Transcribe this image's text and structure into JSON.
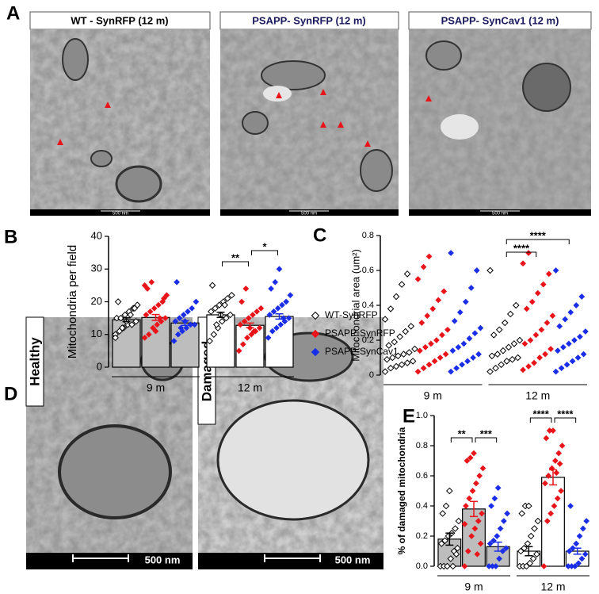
{
  "panels": {
    "a": {
      "label": "A",
      "images": [
        {
          "title": "WT - SynRFP (12 m)",
          "scale": "500 nm"
        },
        {
          "title": "PSAPP- SynRFP (12 m)",
          "scale": "500 nm"
        },
        {
          "title": "PSAPP- SynCav1 (12 m)",
          "scale": "500 nm"
        }
      ]
    },
    "d": {
      "label": "D",
      "images": [
        {
          "label": "Healthy",
          "scale": "500 nm"
        },
        {
          "label": "Damaged",
          "scale": "500 nm"
        }
      ]
    }
  },
  "chart_data": [
    {
      "type": "bar",
      "panel_label": "B",
      "y_label": "Mitochondria per field",
      "categories": [
        "9 m",
        "12 m"
      ],
      "bar_colors": [
        "#bdbdbd",
        "#ffffff"
      ],
      "ylim": [
        0,
        40
      ],
      "yticks": [
        0,
        10,
        20,
        30,
        40
      ],
      "legend": true,
      "annotations": [
        "**",
        "*"
      ],
      "series": [
        {
          "name": "WT-SynRFP",
          "color": "#000000",
          "marker": "open-diamond",
          "values": [
            14.5,
            16.0
          ],
          "errors": [
            0.6,
            0.8
          ],
          "points": [
            [
              10,
              11,
              12,
              13,
              13,
              14,
              15,
              15,
              16,
              17,
              18,
              19,
              20,
              12,
              14,
              16,
              18,
              9
            ],
            [
              8,
              10,
              12,
              14,
              15,
              16,
              17,
              18,
              19,
              20,
              21,
              22,
              25,
              13,
              16,
              19
            ]
          ]
        },
        {
          "name": "PSAPP-SynRFP",
          "color": "#e8141a",
          "marker": "diamond",
          "values": [
            15.2,
            12.8
          ],
          "errors": [
            0.9,
            0.7
          ],
          "points": [
            [
              9,
              10,
              12,
              13,
              14,
              15,
              16,
              17,
              18,
              19,
              20,
              22,
              24,
              26,
              11,
              15,
              21,
              25
            ],
            [
              5,
              7,
              9,
              10,
              11,
              12,
              13,
              14,
              15,
              16,
              17,
              18,
              20,
              24,
              12,
              11
            ]
          ]
        },
        {
          "name": "PSAPP-SynCav1",
          "color": "#1a2ee8",
          "marker": "diamond",
          "values": [
            13.5,
            15.5
          ],
          "errors": [
            0.7,
            0.8
          ],
          "points": [
            [
              8,
              10,
              11,
              12,
              13,
              13,
              14,
              15,
              16,
              17,
              18,
              20,
              26,
              12,
              14
            ],
            [
              9,
              11,
              12,
              13,
              14,
              15,
              16,
              17,
              18,
              19,
              20,
              22,
              24,
              26,
              30,
              15
            ]
          ]
        }
      ]
    },
    {
      "type": "strip",
      "panel_label": "C",
      "y_label": "Mitochondrial area (um²)",
      "categories": [
        "9 m",
        "12 m"
      ],
      "ylim": [
        0,
        0.8
      ],
      "yticks": [
        0,
        0.2,
        0.4,
        0.6,
        0.8
      ],
      "annotations": [
        "****",
        "****"
      ],
      "series": [
        {
          "color": "#000000",
          "marker": "open-diamond",
          "points": [
            [
              0.02,
              0.04,
              0.05,
              0.06,
              0.07,
              0.08,
              0.09,
              0.1,
              0.11,
              0.12,
              0.13,
              0.15,
              0.17,
              0.19,
              0.22,
              0.25,
              0.28,
              0.32,
              0.38,
              0.45,
              0.52,
              0.58
            ],
            [
              0.02,
              0.04,
              0.06,
              0.08,
              0.09,
              0.1,
              0.11,
              0.12,
              0.14,
              0.16,
              0.18,
              0.2,
              0.23,
              0.26,
              0.3,
              0.35,
              0.4,
              0.6
            ]
          ]
        },
        {
          "color": "#e8141a",
          "marker": "diamond",
          "points": [
            [
              0.02,
              0.04,
              0.06,
              0.08,
              0.1,
              0.12,
              0.14,
              0.16,
              0.18,
              0.2,
              0.23,
              0.26,
              0.3,
              0.34,
              0.38,
              0.43,
              0.48,
              0.55,
              0.62,
              0.68
            ],
            [
              0.03,
              0.05,
              0.07,
              0.1,
              0.12,
              0.15,
              0.18,
              0.2,
              0.23,
              0.26,
              0.3,
              0.34,
              0.38,
              0.42,
              0.47,
              0.52,
              0.58,
              0.64,
              0.7
            ]
          ]
        },
        {
          "color": "#1a2ee8",
          "marker": "diamond",
          "points": [
            [
              0.02,
              0.04,
              0.06,
              0.08,
              0.1,
              0.12,
              0.14,
              0.16,
              0.18,
              0.21,
              0.24,
              0.27,
              0.31,
              0.36,
              0.42,
              0.5,
              0.6,
              0.7
            ],
            [
              0.02,
              0.04,
              0.06,
              0.08,
              0.1,
              0.12,
              0.14,
              0.16,
              0.18,
              0.2,
              0.22,
              0.25,
              0.28,
              0.32,
              0.36,
              0.4,
              0.45,
              0.6
            ]
          ]
        }
      ]
    },
    {
      "type": "bar",
      "panel_label": "E",
      "y_label": "% of damaged  mitochondria",
      "categories": [
        "9 m",
        "12 m"
      ],
      "bar_colors": [
        "#bdbdbd",
        "#ffffff"
      ],
      "ylim": [
        0,
        1.0
      ],
      "yticks": [
        {
          "value": 0,
          "label": "0.0"
        },
        0.2,
        0.4,
        0.6,
        0.8,
        {
          "value": 1,
          "label": "1.0"
        }
      ],
      "annotations": [
        "**",
        "***",
        "****",
        "****"
      ],
      "series": [
        {
          "color": "#000000",
          "marker": "open-diamond",
          "values": [
            0.18,
            0.1
          ],
          "errors": [
            0.04,
            0.03
          ],
          "points": [
            [
              0,
              0,
              0,
              0.05,
              0.1,
              0.12,
              0.15,
              0.17,
              0.2,
              0.22,
              0.25,
              0.3,
              0.35,
              0.4,
              0.5,
              0,
              0.08
            ],
            [
              0,
              0,
              0,
              0.02,
              0.05,
              0.08,
              0.1,
              0.12,
              0.15,
              0.2,
              0.25,
              0.3,
              0.35,
              0.4,
              0.4
            ]
          ]
        },
        {
          "color": "#e8141a",
          "marker": "diamond",
          "values": [
            0.38,
            0.59
          ],
          "errors": [
            0.05,
            0.05
          ],
          "points": [
            [
              0,
              0.1,
              0.2,
              0.25,
              0.3,
              0.35,
              0.4,
              0.45,
              0.5,
              0.55,
              0.6,
              0.65,
              0.7,
              0.72,
              0.75,
              0.08,
              0.15,
              0.28
            ],
            [
              0,
              0.3,
              0.35,
              0.4,
              0.45,
              0.5,
              0.55,
              0.6,
              0.65,
              0.7,
              0.75,
              0.8,
              0.85,
              0.9,
              0.9,
              0.62,
              0.68
            ]
          ]
        },
        {
          "color": "#1a2ee8",
          "marker": "diamond",
          "values": [
            0.13,
            0.1
          ],
          "errors": [
            0.03,
            0.02
          ],
          "points": [
            [
              0,
              0,
              0,
              0.05,
              0.1,
              0.12,
              0.15,
              0.17,
              0.2,
              0.25,
              0.3,
              0.35,
              0.4,
              0.45,
              0.52
            ],
            [
              0,
              0,
              0,
              0.02,
              0.05,
              0.08,
              0.1,
              0.12,
              0.15,
              0.2,
              0.25,
              0.3,
              0.4
            ]
          ]
        }
      ]
    }
  ]
}
